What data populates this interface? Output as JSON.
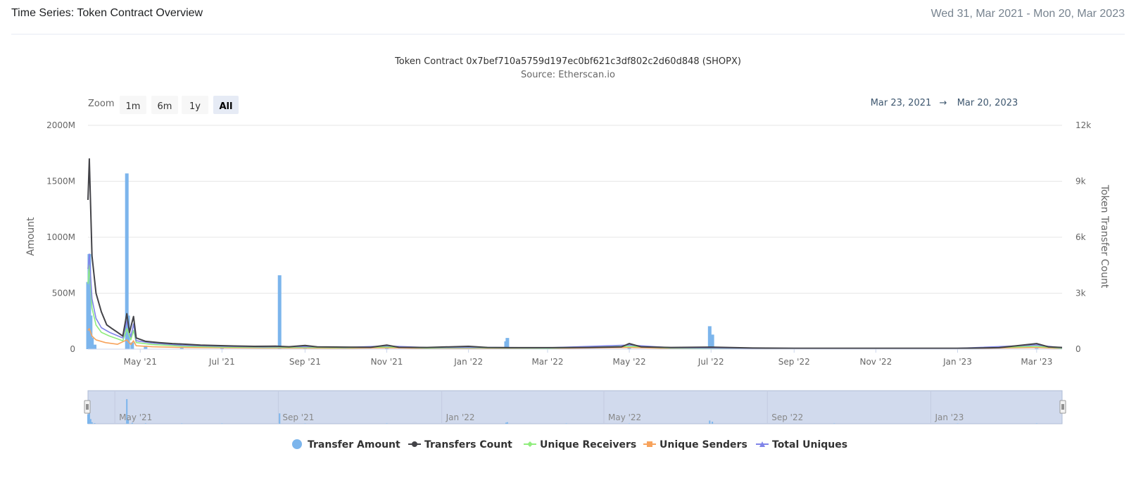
{
  "page": {
    "title": "Time Series: Token Contract Overview",
    "date_range": "Wed 31, Mar 2021 - Mon 20, Mar 2023"
  },
  "zoom": {
    "label": "Zoom",
    "buttons": [
      "1m",
      "6m",
      "1y",
      "All"
    ],
    "active": "All"
  },
  "range_selector": {
    "from": "Mar 23, 2021",
    "separator": "→",
    "to": "Mar 20, 2023"
  },
  "navigator": {
    "labels": [
      "May '21",
      "Sep '21",
      "Jan '22",
      "May '22",
      "Sep '22",
      "Jan '23"
    ]
  },
  "colors": {
    "transfer_amount": "#7cb5ec",
    "transfers_count": "#434348",
    "unique_receivers": "#90ed7d",
    "unique_senders": "#f7a35c",
    "total_uniques": "#8085e9",
    "grid": "#e6e6e6",
    "navigator_mask": "rgba(102,133,194,0.3)"
  },
  "chart_data": {
    "type": "bar+line",
    "title": "Token Contract 0x7bef710a5759d197ec0bf621c3df802c2d60d848 (SHOPX)",
    "subtitle": "Source: Etherscan.io",
    "x_start": "2021-03-23",
    "x_end": "2023-03-20",
    "x_ticks": [
      {
        "date": "2021-05-01",
        "label": "May '21"
      },
      {
        "date": "2021-07-01",
        "label": "Jul '21"
      },
      {
        "date": "2021-09-01",
        "label": "Sep '21"
      },
      {
        "date": "2021-11-01",
        "label": "Nov '21"
      },
      {
        "date": "2022-01-01",
        "label": "Jan '22"
      },
      {
        "date": "2022-03-01",
        "label": "Mar '22"
      },
      {
        "date": "2022-05-01",
        "label": "May '22"
      },
      {
        "date": "2022-07-01",
        "label": "Jul '22"
      },
      {
        "date": "2022-09-01",
        "label": "Sep '22"
      },
      {
        "date": "2022-11-01",
        "label": "Nov '22"
      },
      {
        "date": "2023-01-01",
        "label": "Jan '23"
      },
      {
        "date": "2023-03-01",
        "label": "Mar '23"
      }
    ],
    "y_left": {
      "label": "Amount",
      "min": 0,
      "max": 2000000000,
      "ticks": [
        {
          "value": 0,
          "label": "0"
        },
        {
          "value": 500000000,
          "label": "500M"
        },
        {
          "value": 1000000000,
          "label": "1000M"
        },
        {
          "value": 1500000000,
          "label": "1500M"
        },
        {
          "value": 2000000000,
          "label": "2000M"
        }
      ]
    },
    "y_right": {
      "label": "Token Transfer Count",
      "min": 0,
      "max": 12000,
      "ticks": [
        {
          "value": 0,
          "label": "0"
        },
        {
          "value": 3000,
          "label": "3k"
        },
        {
          "value": 6000,
          "label": "6k"
        },
        {
          "value": 9000,
          "label": "9k"
        },
        {
          "value": 12000,
          "label": "12k"
        }
      ]
    },
    "series": [
      {
        "key": "transfer_amount",
        "name": "Transfer Amount",
        "type": "column",
        "axis": "left",
        "marker": "circle",
        "points": [
          [
            "2021-03-23",
            600000000
          ],
          [
            "2021-03-24",
            850000000
          ],
          [
            "2021-03-25",
            300000000
          ],
          [
            "2021-03-26",
            100000000
          ],
          [
            "2021-03-28",
            40000000
          ],
          [
            "2021-04-21",
            1570000000
          ],
          [
            "2021-04-22",
            300000000
          ],
          [
            "2021-04-25",
            60000000
          ],
          [
            "2021-05-05",
            30000000
          ],
          [
            "2021-06-01",
            15000000
          ],
          [
            "2021-07-01",
            10000000
          ],
          [
            "2021-08-13",
            660000000
          ],
          [
            "2021-09-01",
            10000000
          ],
          [
            "2021-11-01",
            8000000
          ],
          [
            "2022-01-29",
            70000000
          ],
          [
            "2022-01-30",
            100000000
          ],
          [
            "2022-03-15",
            6000000
          ],
          [
            "2022-05-01",
            10000000
          ],
          [
            "2022-06-30",
            205000000
          ],
          [
            "2022-07-02",
            130000000
          ],
          [
            "2022-10-01",
            5000000
          ],
          [
            "2023-01-01",
            5000000
          ],
          [
            "2023-03-01",
            8000000
          ]
        ]
      },
      {
        "key": "transfers_count",
        "name": "Transfers Count",
        "type": "line",
        "axis": "right",
        "marker": "circle",
        "points": [
          [
            "2021-03-23",
            8000
          ],
          [
            "2021-03-24",
            10200
          ],
          [
            "2021-03-26",
            5000
          ],
          [
            "2021-03-29",
            3000
          ],
          [
            "2021-04-02",
            2000
          ],
          [
            "2021-04-06",
            1300
          ],
          [
            "2021-04-10",
            1100
          ],
          [
            "2021-04-14",
            900
          ],
          [
            "2021-04-18",
            700
          ],
          [
            "2021-04-21",
            1900
          ],
          [
            "2021-04-23",
            900
          ],
          [
            "2021-04-26",
            1750
          ],
          [
            "2021-04-28",
            600
          ],
          [
            "2021-05-05",
            420
          ],
          [
            "2021-05-15",
            350
          ],
          [
            "2021-05-25",
            300
          ],
          [
            "2021-06-05",
            260
          ],
          [
            "2021-06-15",
            220
          ],
          [
            "2021-06-25",
            200
          ],
          [
            "2021-07-10",
            170
          ],
          [
            "2021-07-25",
            150
          ],
          [
            "2021-08-10",
            160
          ],
          [
            "2021-08-20",
            130
          ],
          [
            "2021-09-01",
            200
          ],
          [
            "2021-09-10",
            120
          ],
          [
            "2021-10-01",
            110
          ],
          [
            "2021-10-20",
            100
          ],
          [
            "2021-11-01",
            220
          ],
          [
            "2021-11-10",
            100
          ],
          [
            "2021-12-01",
            90
          ],
          [
            "2022-01-01",
            150
          ],
          [
            "2022-01-15",
            90
          ],
          [
            "2022-02-01",
            80
          ],
          [
            "2022-03-01",
            80
          ],
          [
            "2022-04-01",
            90
          ],
          [
            "2022-04-25",
            120
          ],
          [
            "2022-05-01",
            300
          ],
          [
            "2022-05-10",
            120
          ],
          [
            "2022-06-01",
            90
          ],
          [
            "2022-07-01",
            110
          ],
          [
            "2022-08-01",
            60
          ],
          [
            "2022-09-01",
            50
          ],
          [
            "2022-10-01",
            50
          ],
          [
            "2022-11-01",
            45
          ],
          [
            "2022-12-01",
            45
          ],
          [
            "2023-01-01",
            50
          ],
          [
            "2023-02-01",
            80
          ],
          [
            "2023-03-01",
            300
          ],
          [
            "2023-03-10",
            120
          ],
          [
            "2023-03-20",
            90
          ]
        ]
      },
      {
        "key": "unique_receivers",
        "name": "Unique Receivers",
        "type": "line",
        "axis": "right",
        "marker": "diamond",
        "points": [
          [
            "2021-03-23",
            3500
          ],
          [
            "2021-03-24",
            4500
          ],
          [
            "2021-03-26",
            2200
          ],
          [
            "2021-03-29",
            1300
          ],
          [
            "2021-04-02",
            900
          ],
          [
            "2021-04-08",
            700
          ],
          [
            "2021-04-14",
            550
          ],
          [
            "2021-04-18",
            450
          ],
          [
            "2021-04-21",
            1100
          ],
          [
            "2021-04-24",
            500
          ],
          [
            "2021-04-26",
            1000
          ],
          [
            "2021-04-28",
            350
          ],
          [
            "2021-05-10",
            250
          ],
          [
            "2021-06-01",
            160
          ],
          [
            "2021-07-01",
            110
          ],
          [
            "2021-08-01",
            90
          ],
          [
            "2021-09-01",
            100
          ],
          [
            "2021-10-01",
            70
          ],
          [
            "2021-11-01",
            120
          ],
          [
            "2021-12-01",
            60
          ],
          [
            "2022-01-01",
            70
          ],
          [
            "2022-03-01",
            50
          ],
          [
            "2022-05-01",
            150
          ],
          [
            "2022-06-01",
            55
          ],
          [
            "2022-08-01",
            35
          ],
          [
            "2022-11-01",
            30
          ],
          [
            "2023-01-01",
            30
          ],
          [
            "2023-03-01",
            150
          ],
          [
            "2023-03-20",
            50
          ]
        ]
      },
      {
        "key": "unique_senders",
        "name": "Unique Senders",
        "type": "line",
        "axis": "right",
        "marker": "square",
        "points": [
          [
            "2021-03-23",
            1000
          ],
          [
            "2021-03-24",
            1100
          ],
          [
            "2021-03-26",
            700
          ],
          [
            "2021-03-29",
            500
          ],
          [
            "2021-04-05",
            350
          ],
          [
            "2021-04-14",
            260
          ],
          [
            "2021-04-21",
            500
          ],
          [
            "2021-04-24",
            250
          ],
          [
            "2021-04-26",
            450
          ],
          [
            "2021-04-28",
            180
          ],
          [
            "2021-05-10",
            130
          ],
          [
            "2021-06-01",
            90
          ],
          [
            "2021-07-01",
            70
          ],
          [
            "2021-08-01",
            55
          ],
          [
            "2021-09-01",
            60
          ],
          [
            "2021-10-01",
            45
          ],
          [
            "2021-11-01",
            70
          ],
          [
            "2021-12-01",
            40
          ],
          [
            "2022-01-01",
            45
          ],
          [
            "2022-03-01",
            35
          ],
          [
            "2022-05-01",
            90
          ],
          [
            "2022-06-01",
            35
          ],
          [
            "2022-08-01",
            25
          ],
          [
            "2022-11-01",
            20
          ],
          [
            "2023-01-01",
            20
          ],
          [
            "2023-03-01",
            90
          ],
          [
            "2023-03-20",
            30
          ]
        ]
      },
      {
        "key": "total_uniques",
        "name": "Total Uniques",
        "type": "line",
        "axis": "right",
        "marker": "triangle",
        "points": [
          [
            "2021-03-23",
            4300
          ],
          [
            "2021-03-24",
            5100
          ],
          [
            "2021-03-26",
            2700
          ],
          [
            "2021-03-29",
            1650
          ],
          [
            "2021-04-02",
            1150
          ],
          [
            "2021-04-08",
            900
          ],
          [
            "2021-04-14",
            720
          ],
          [
            "2021-04-18",
            600
          ],
          [
            "2021-04-21",
            1500
          ],
          [
            "2021-04-24",
            650
          ],
          [
            "2021-04-26",
            1350
          ],
          [
            "2021-04-28",
            450
          ],
          [
            "2021-05-10",
            320
          ],
          [
            "2021-06-01",
            210
          ],
          [
            "2021-07-01",
            150
          ],
          [
            "2021-08-01",
            120
          ],
          [
            "2021-09-01",
            140
          ],
          [
            "2021-10-01",
            95
          ],
          [
            "2021-11-01",
            170
          ],
          [
            "2021-12-01",
            85
          ],
          [
            "2022-01-01",
            100
          ],
          [
            "2022-03-01",
            75
          ],
          [
            "2022-05-01",
            220
          ],
          [
            "2022-06-01",
            80
          ],
          [
            "2022-08-01",
            50
          ],
          [
            "2022-11-01",
            45
          ],
          [
            "2023-01-01",
            45
          ],
          [
            "2023-03-01",
            220
          ],
          [
            "2023-03-20",
            70
          ]
        ]
      }
    ],
    "grid": true,
    "legend_position": "bottom-center"
  }
}
